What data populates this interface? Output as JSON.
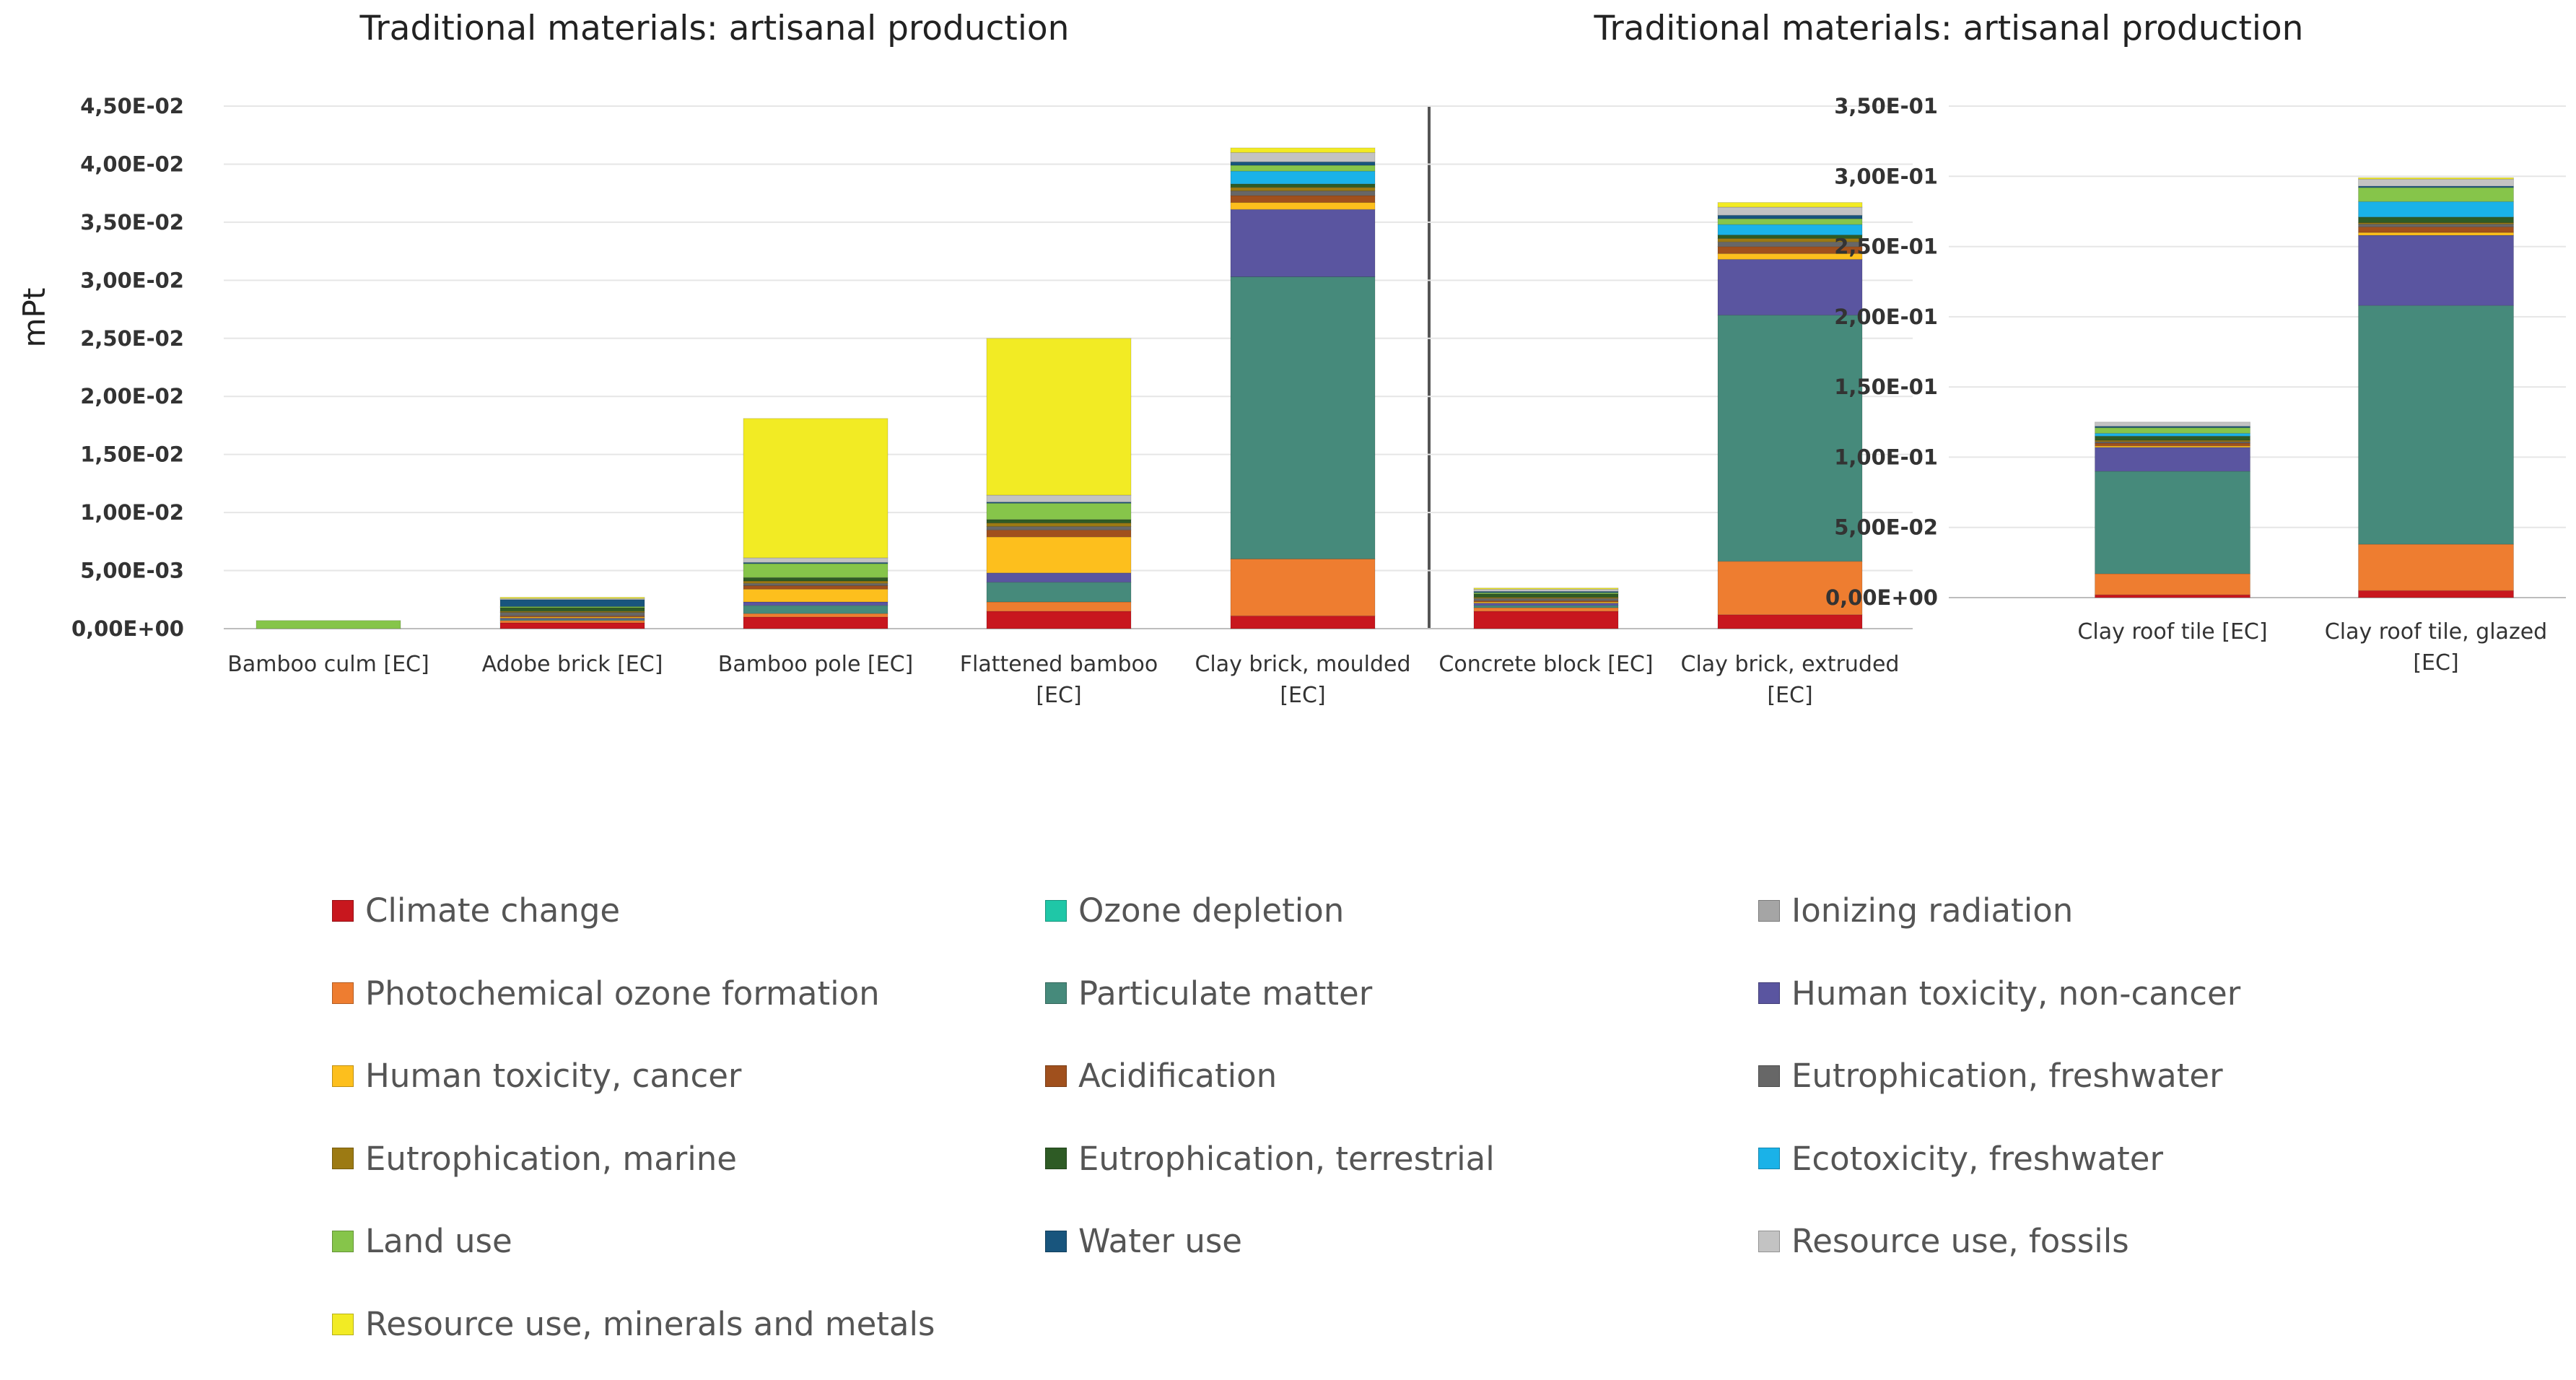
{
  "chart_data": [
    {
      "type": "bar",
      "stacked": true,
      "title": "Traditional materials: artisanal production",
      "ylabel": "mPt",
      "ylim": [
        0,
        0.045
      ],
      "yticks": [
        "0,00E+00",
        "5,00E-03",
        "1,00E-02",
        "1,50E-02",
        "2,00E-02",
        "2,50E-02",
        "3,00E-02",
        "3,50E-02",
        "4,00E-02",
        "4,50E-02"
      ],
      "grid": true,
      "categories": [
        [
          "Bamboo culm [EC]"
        ],
        [
          "Adobe brick [EC]"
        ],
        [
          "Bamboo pole [EC]"
        ],
        [
          "Flattened bamboo",
          "[EC]"
        ],
        [
          "Clay brick, moulded",
          "[EC]"
        ],
        [
          "Concrete block [EC]"
        ],
        [
          "Clay brick, extruded",
          "[EC]"
        ]
      ],
      "series": [
        {
          "name": "Climate change",
          "values": [
            0,
            0.0005,
            0.001,
            0.0015,
            0.0011,
            0.0015,
            0.0012
          ]
        },
        {
          "name": "Ozone depletion",
          "values": [
            0,
            0,
            0,
            0,
            0,
            0,
            0
          ]
        },
        {
          "name": "Ionizing radiation",
          "values": [
            0,
            0,
            0,
            0,
            0,
            0,
            0
          ]
        },
        {
          "name": "Photochemical ozone formation",
          "values": [
            0,
            0.0002,
            0.0003,
            0.0008,
            0.0049,
            0.0003,
            0.0046
          ]
        },
        {
          "name": "Particulate matter",
          "values": [
            0,
            0.0001,
            0.0007,
            0.0017,
            0.0243,
            0.0002,
            0.0212
          ]
        },
        {
          "name": "Human toxicity, non-cancer",
          "values": [
            0,
            0.0001,
            0.0003,
            0.0008,
            0.0058,
            0.0002,
            0.0048
          ]
        },
        {
          "name": "Human toxicity, cancer",
          "values": [
            0,
            0.0001,
            0.0011,
            0.0031,
            0.0006,
            0.0001,
            0.0005
          ]
        },
        {
          "name": "Acidification",
          "values": [
            0,
            0.0001,
            0.0003,
            0.0006,
            0.0006,
            0.0001,
            0.0006
          ]
        },
        {
          "name": "Eutrophication, freshwater",
          "values": [
            0,
            0.0003,
            0.0002,
            0.0003,
            0.0004,
            0.0002,
            0.0004
          ]
        },
        {
          "name": "Eutrophication, marine",
          "values": [
            0,
            0.0001,
            0.0002,
            0.0003,
            0.0003,
            0.0001,
            0.0003
          ]
        },
        {
          "name": "Eutrophication, terrestrial",
          "values": [
            0,
            0.0003,
            0.0003,
            0.0003,
            0.0003,
            0.0003,
            0.0003
          ]
        },
        {
          "name": "Ecotoxicity, freshwater",
          "values": [
            0,
            0,
            0,
            0,
            0.0011,
            0,
            0.0009
          ]
        },
        {
          "name": "Land use",
          "values": [
            0.0007,
            0.0001,
            0.0012,
            0.0014,
            0.0005,
            0.0001,
            0.0005
          ]
        },
        {
          "name": "Water use",
          "values": [
            0,
            0.0006,
            0.0001,
            0.0001,
            0.0003,
            0.0001,
            0.0003
          ]
        },
        {
          "name": "Resource use, fossils",
          "values": [
            0,
            0.0001,
            0.0004,
            0.0006,
            0.0008,
            0.0002,
            0.0007
          ]
        },
        {
          "name": "Resource use, minerals and metals",
          "values": [
            0,
            0.0001,
            0.012,
            0.0135,
            0.0004,
            0.0001,
            0.0004
          ]
        }
      ]
    },
    {
      "type": "bar",
      "stacked": true,
      "title": "Traditional materials: artisanal production",
      "ylim": [
        0,
        0.35
      ],
      "yticks": [
        "0,00E+00",
        "5,00E-02",
        "1,00E-01",
        "1,50E-01",
        "2,00E-01",
        "2,50E-01",
        "3,00E-01",
        "3,50E-01"
      ],
      "grid": true,
      "categories": [
        [
          "Clay roof tile [EC]"
        ],
        [
          "Clay roof tile, glazed",
          "[EC]"
        ]
      ],
      "series": [
        {
          "name": "Climate change",
          "values": [
            0.002,
            0.005
          ]
        },
        {
          "name": "Ozone depletion",
          "values": [
            0,
            0
          ]
        },
        {
          "name": "Ionizing radiation",
          "values": [
            0,
            0
          ]
        },
        {
          "name": "Photochemical ozone formation",
          "values": [
            0.015,
            0.033
          ]
        },
        {
          "name": "Particulate matter",
          "values": [
            0.073,
            0.17
          ]
        },
        {
          "name": "Human toxicity, non-cancer",
          "values": [
            0.017,
            0.05
          ]
        },
        {
          "name": "Human toxicity, cancer",
          "values": [
            0.001,
            0.002
          ]
        },
        {
          "name": "Acidification",
          "values": [
            0.002,
            0.004
          ]
        },
        {
          "name": "Eutrophication, freshwater",
          "values": [
            0.001,
            0.002
          ]
        },
        {
          "name": "Eutrophication, marine",
          "values": [
            0.001,
            0.001
          ]
        },
        {
          "name": "Eutrophication, terrestrial",
          "values": [
            0.003,
            0.004
          ]
        },
        {
          "name": "Ecotoxicity, freshwater",
          "values": [
            0.002,
            0.011
          ]
        },
        {
          "name": "Land use",
          "values": [
            0.004,
            0.01
          ]
        },
        {
          "name": "Water use",
          "values": [
            0.001,
            0.001
          ]
        },
        {
          "name": "Resource use, fossils",
          "values": [
            0.003,
            0.005
          ]
        },
        {
          "name": "Resource use, minerals and metals",
          "values": [
            0,
            0.001
          ]
        }
      ]
    }
  ],
  "legend": {
    "items": [
      {
        "label": "Climate change",
        "color": "#C8171E"
      },
      {
        "label": "Ozone depletion",
        "color": "#1FC7A7"
      },
      {
        "label": "Ionizing radiation",
        "color": "#A5A5A5"
      },
      {
        "label": "Photochemical ozone formation",
        "color": "#EE7D30"
      },
      {
        "label": "Particulate matter",
        "color": "#468A7B"
      },
      {
        "label": "Human toxicity, non-cancer",
        "color": "#5A55A0"
      },
      {
        "label": "Human toxicity, cancer",
        "color": "#FDBF1D"
      },
      {
        "label": "Acidification",
        "color": "#A0501D"
      },
      {
        "label": "Eutrophication, freshwater",
        "color": "#676767"
      },
      {
        "label": "Eutrophication, marine",
        "color": "#9C7A13"
      },
      {
        "label": "Eutrophication, terrestrial",
        "color": "#2E5B25"
      },
      {
        "label": "Ecotoxicity, freshwater",
        "color": "#1AB2E8"
      },
      {
        "label": "Land use",
        "color": "#86C54A"
      },
      {
        "label": "Water use",
        "color": "#18557D"
      },
      {
        "label": "Resource use, fossils",
        "color": "#C3C3C3"
      },
      {
        "label": "Resource use, minerals and metals",
        "color": "#F2EB24"
      }
    ]
  },
  "extra_colors": {
    "black_layer": "#111111"
  }
}
